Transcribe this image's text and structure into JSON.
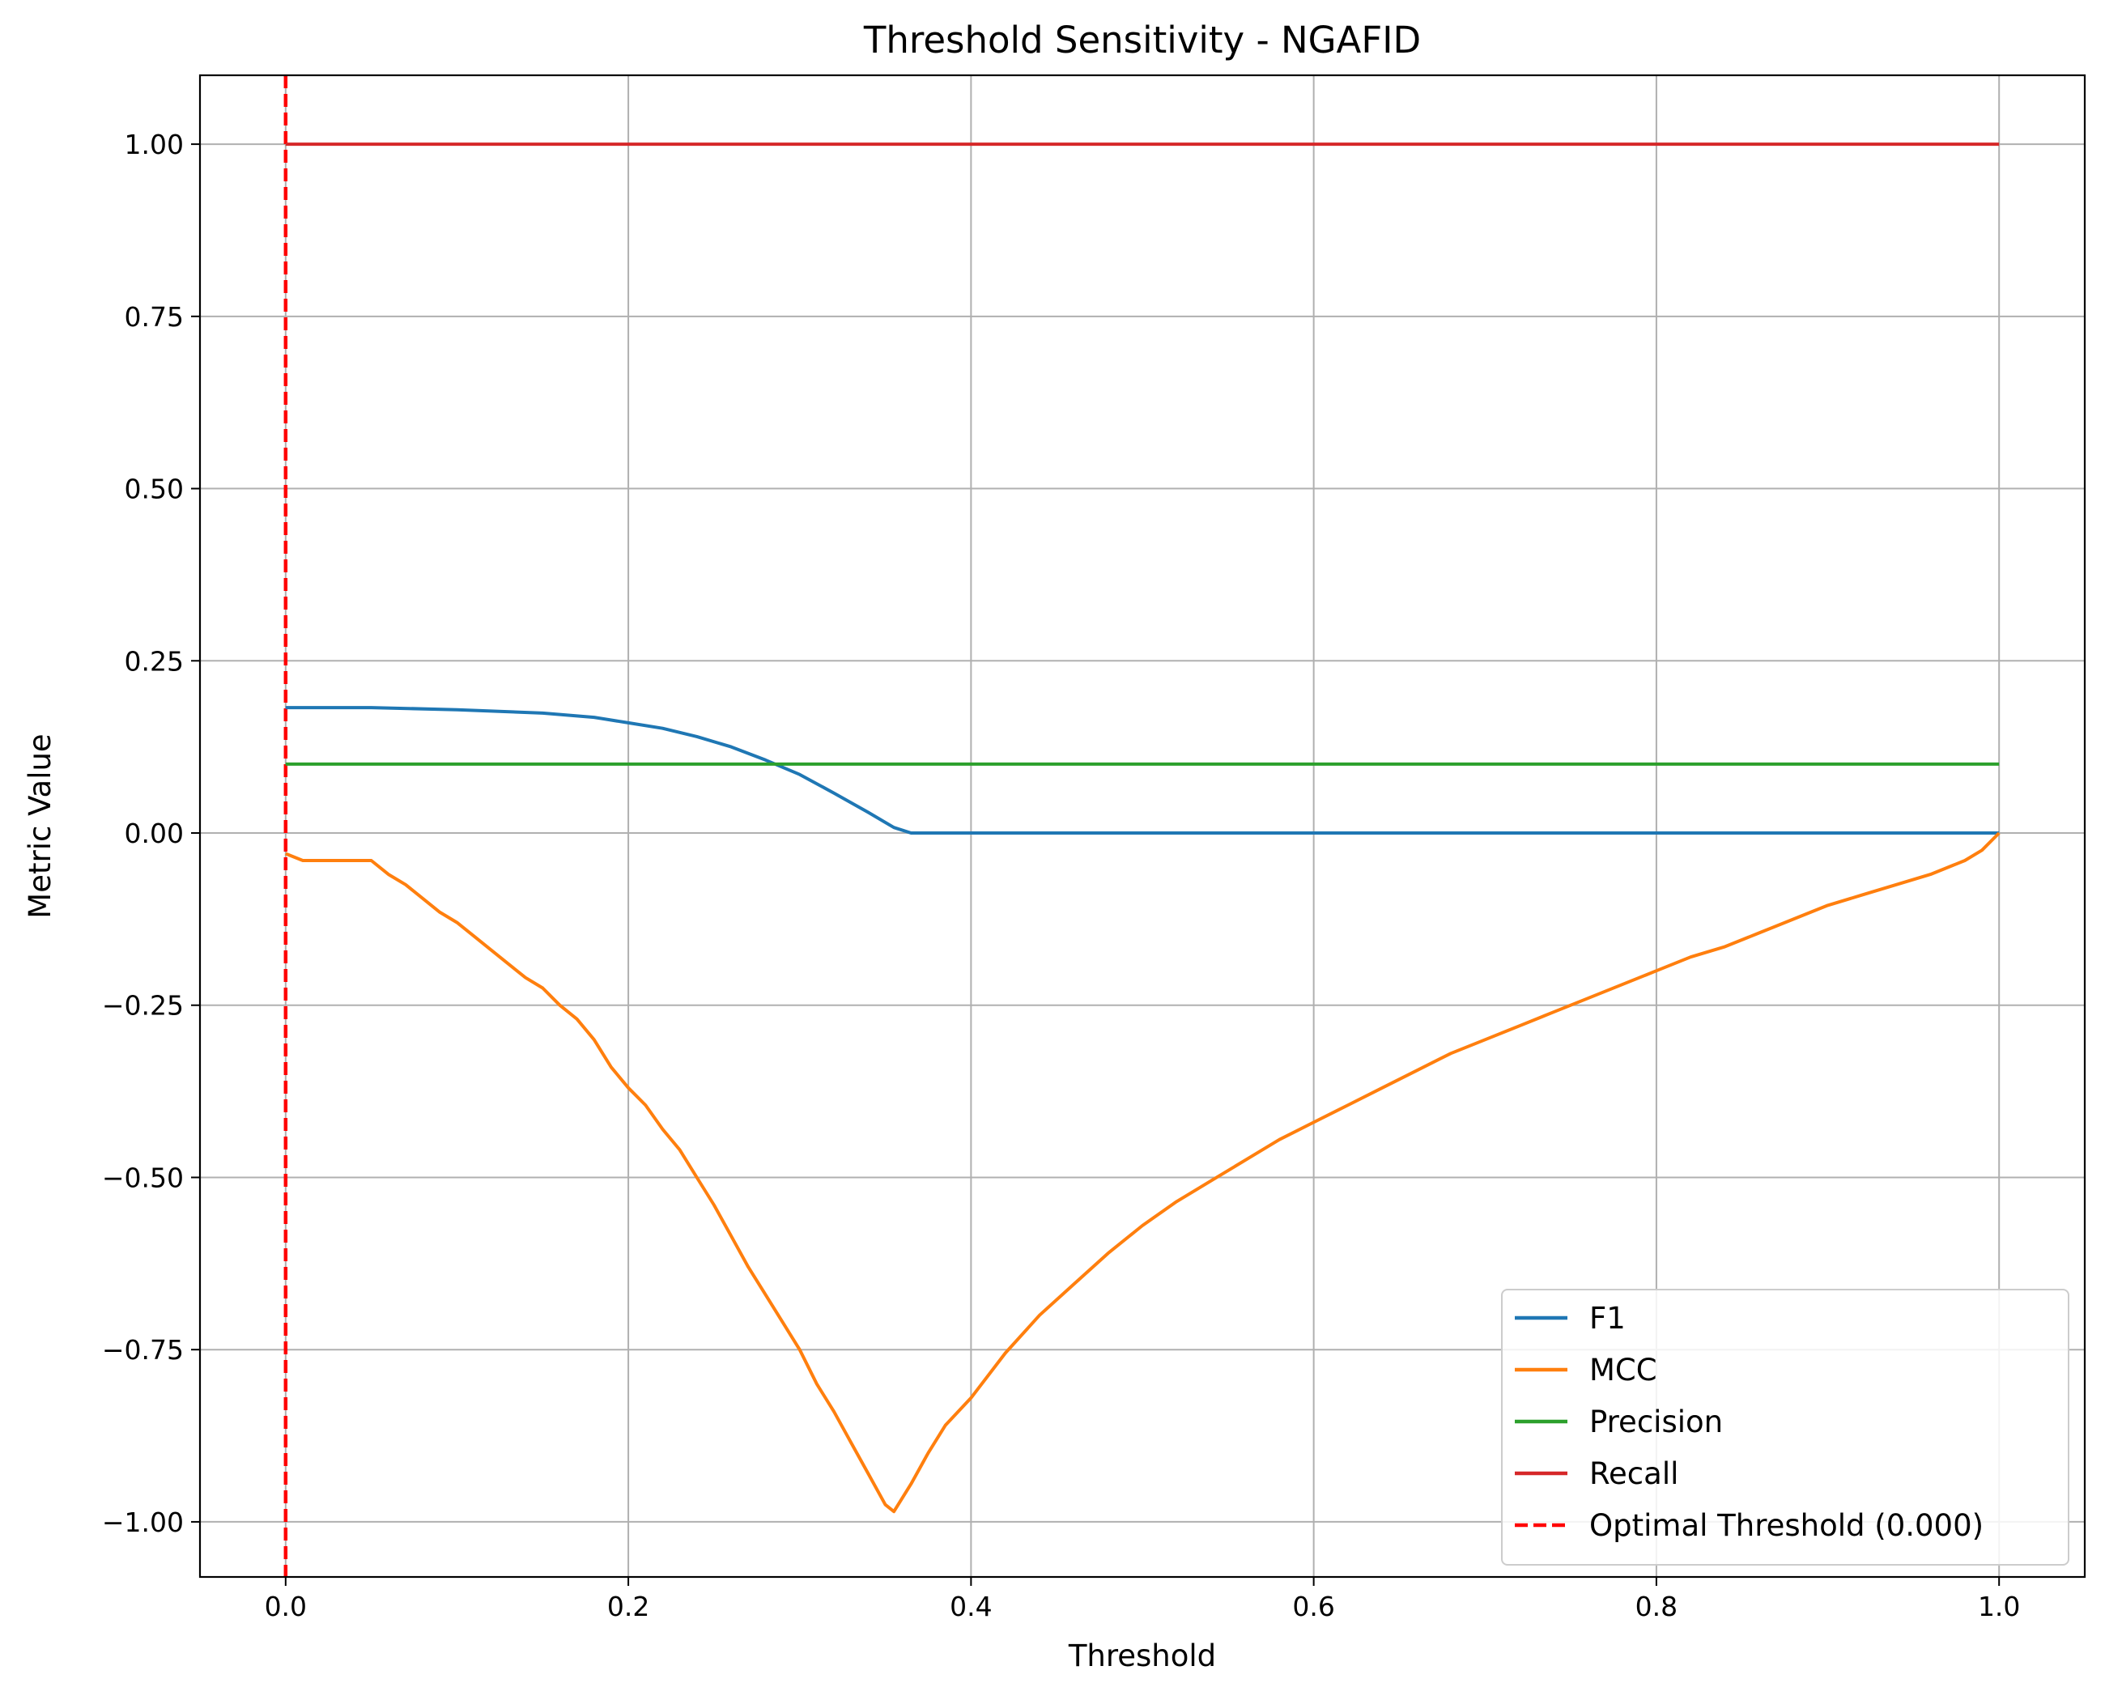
{
  "chart_data": {
    "type": "line",
    "title": "Threshold Sensitivity - NGAFID",
    "xlabel": "Threshold",
    "ylabel": "Metric Value",
    "xlim": [
      -0.05,
      1.05
    ],
    "ylim": [
      -1.08,
      1.1
    ],
    "xticks": [
      0.0,
      0.2,
      0.4,
      0.6,
      0.8,
      1.0
    ],
    "xtick_labels": [
      "0.0",
      "0.2",
      "0.4",
      "0.6",
      "0.8",
      "1.0"
    ],
    "yticks": [
      -1.0,
      -0.75,
      -0.5,
      -0.25,
      0.0,
      0.25,
      0.5,
      0.75,
      1.0
    ],
    "ytick_labels": [
      "−1.00",
      "−0.75",
      "−0.50",
      "−0.25",
      "0.00",
      "0.25",
      "0.50",
      "0.75",
      "1.00"
    ],
    "grid": true,
    "legend_position": "lower right",
    "series": [
      {
        "name": "F1",
        "color": "#1f77b4",
        "x": [
          0.0,
          0.05,
          0.1,
          0.15,
          0.18,
          0.2,
          0.22,
          0.24,
          0.26,
          0.28,
          0.3,
          0.32,
          0.34,
          0.355,
          0.365,
          0.4,
          0.6,
          0.8,
          1.0
        ],
        "y": [
          0.182,
          0.182,
          0.179,
          0.174,
          0.168,
          0.16,
          0.152,
          0.14,
          0.125,
          0.106,
          0.085,
          0.058,
          0.03,
          0.008,
          0.0,
          0.0,
          0.0,
          0.0,
          0.0
        ]
      },
      {
        "name": "MCC",
        "color": "#ff7f0e",
        "x": [
          0.0,
          0.01,
          0.02,
          0.03,
          0.04,
          0.05,
          0.06,
          0.07,
          0.08,
          0.09,
          0.1,
          0.11,
          0.12,
          0.13,
          0.14,
          0.15,
          0.16,
          0.17,
          0.18,
          0.19,
          0.2,
          0.21,
          0.22,
          0.23,
          0.24,
          0.25,
          0.26,
          0.27,
          0.28,
          0.29,
          0.3,
          0.31,
          0.32,
          0.33,
          0.34,
          0.35,
          0.355,
          0.365,
          0.375,
          0.385,
          0.4,
          0.42,
          0.44,
          0.46,
          0.48,
          0.5,
          0.52,
          0.54,
          0.56,
          0.58,
          0.6,
          0.62,
          0.64,
          0.66,
          0.68,
          0.7,
          0.72,
          0.74,
          0.76,
          0.78,
          0.8,
          0.82,
          0.84,
          0.86,
          0.88,
          0.9,
          0.92,
          0.94,
          0.96,
          0.98,
          0.99,
          1.0
        ],
        "y": [
          -0.03,
          -0.04,
          -0.04,
          -0.04,
          -0.04,
          -0.04,
          -0.06,
          -0.075,
          -0.095,
          -0.115,
          -0.13,
          -0.15,
          -0.17,
          -0.19,
          -0.21,
          -0.225,
          -0.25,
          -0.27,
          -0.3,
          -0.34,
          -0.37,
          -0.395,
          -0.43,
          -0.46,
          -0.5,
          -0.54,
          -0.585,
          -0.63,
          -0.67,
          -0.71,
          -0.75,
          -0.8,
          -0.84,
          -0.885,
          -0.93,
          -0.975,
          -0.985,
          -0.945,
          -0.9,
          -0.86,
          -0.82,
          -0.755,
          -0.7,
          -0.655,
          -0.61,
          -0.57,
          -0.535,
          -0.505,
          -0.475,
          -0.445,
          -0.42,
          -0.395,
          -0.37,
          -0.345,
          -0.32,
          -0.3,
          -0.28,
          -0.26,
          -0.24,
          -0.22,
          -0.2,
          -0.18,
          -0.165,
          -0.145,
          -0.125,
          -0.105,
          -0.09,
          -0.075,
          -0.06,
          -0.04,
          -0.025,
          0.0
        ]
      },
      {
        "name": "Precision",
        "color": "#2ca02c",
        "x": [
          0.0,
          1.0
        ],
        "y": [
          0.1,
          0.1
        ]
      },
      {
        "name": "Recall",
        "color": "#d62728",
        "x": [
          0.0,
          1.0
        ],
        "y": [
          1.0,
          1.0
        ]
      }
    ],
    "vline": {
      "name": "Optimal Threshold (0.000)",
      "x": 0.0,
      "color": "#ff0000",
      "style": "dashed"
    }
  }
}
